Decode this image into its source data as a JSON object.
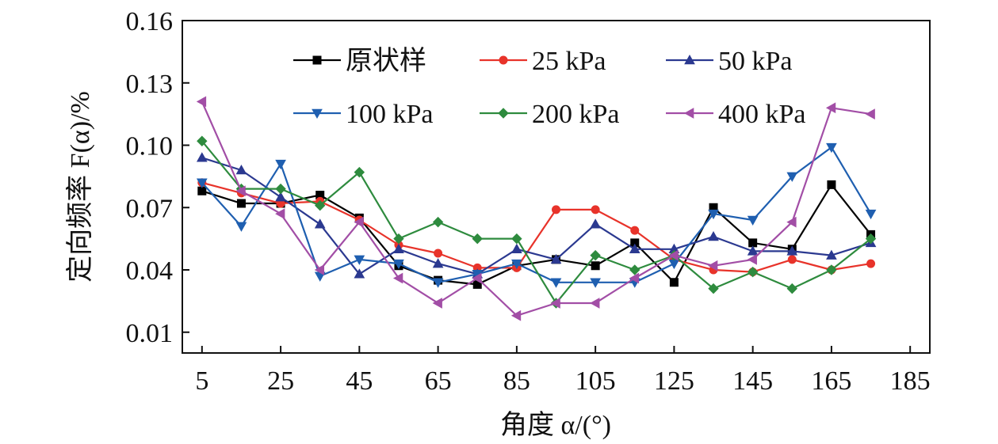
{
  "chart_data": {
    "type": "line",
    "title": "",
    "xlabel": "角度 α/(°)",
    "ylabel": "定向频率 F(α)/%",
    "xlim": [
      0,
      190
    ],
    "ylim": [
      0.0,
      0.16
    ],
    "x_ticks": [
      5,
      25,
      45,
      65,
      85,
      105,
      125,
      145,
      165,
      185
    ],
    "y_ticks": [
      0.01,
      0.04,
      0.07,
      0.1,
      0.13,
      0.16
    ],
    "y_tick_labels": [
      "0.01",
      "0.04",
      "0.07",
      "0.10",
      "0.13",
      "0.16"
    ],
    "legend_position": "top",
    "grid": false,
    "x": [
      5,
      15,
      25,
      35,
      45,
      55,
      65,
      75,
      85,
      95,
      105,
      115,
      125,
      135,
      145,
      155,
      165,
      175
    ],
    "series": [
      {
        "name": "原状样",
        "color": "#000000",
        "marker": "square",
        "values": [
          0.078,
          0.072,
          0.072,
          0.076,
          0.065,
          0.042,
          0.035,
          0.033,
          0.042,
          0.045,
          0.042,
          0.053,
          0.034,
          0.07,
          0.053,
          0.05,
          0.081,
          0.057
        ]
      },
      {
        "name": "25 kPa",
        "color": "#e8332a",
        "marker": "circle",
        "values": [
          0.082,
          0.077,
          0.072,
          0.073,
          0.064,
          0.052,
          0.048,
          0.041,
          0.041,
          0.069,
          0.069,
          0.059,
          0.045,
          0.04,
          0.039,
          0.045,
          0.04,
          0.043
        ]
      },
      {
        "name": "50 kPa",
        "color": "#2b3990",
        "marker": "triangle-up",
        "values": [
          0.094,
          0.088,
          0.075,
          0.062,
          0.038,
          0.05,
          0.043,
          0.038,
          0.05,
          0.045,
          0.062,
          0.05,
          0.05,
          0.056,
          0.049,
          0.049,
          0.047,
          0.053
        ]
      },
      {
        "name": "100 kPa",
        "color": "#1f5fb0",
        "marker": "triangle-down",
        "values": [
          0.082,
          0.061,
          0.091,
          0.037,
          0.045,
          0.043,
          0.034,
          0.038,
          0.043,
          0.034,
          0.034,
          0.034,
          0.043,
          0.067,
          0.064,
          0.085,
          0.099,
          0.067
        ]
      },
      {
        "name": "200 kPa",
        "color": "#2e8b3e",
        "marker": "diamond",
        "values": [
          0.102,
          0.079,
          0.079,
          0.071,
          0.087,
          0.055,
          0.063,
          0.055,
          0.055,
          0.024,
          0.047,
          0.04,
          0.047,
          0.031,
          0.039,
          0.031,
          0.04,
          0.055
        ]
      },
      {
        "name": "400 kPa",
        "color": "#a24ea6",
        "marker": "triangle-left",
        "values": [
          0.121,
          0.078,
          0.067,
          0.04,
          0.063,
          0.036,
          0.024,
          0.036,
          0.018,
          0.024,
          0.024,
          0.036,
          0.047,
          0.042,
          0.045,
          0.063,
          0.118,
          0.115
        ]
      }
    ]
  }
}
